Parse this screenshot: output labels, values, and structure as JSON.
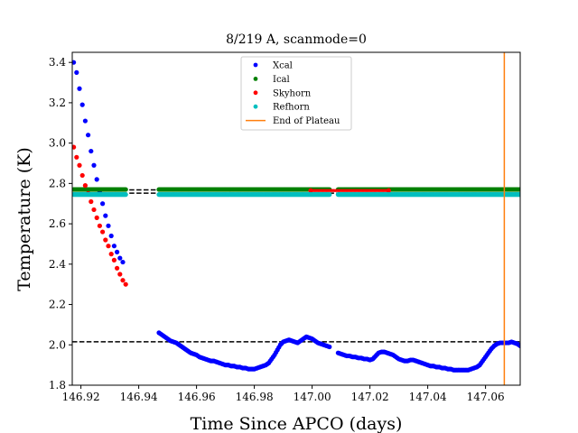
{
  "chart_data": {
    "type": "scatter",
    "title": "8/219 A, scanmode=0",
    "xlabel": "Time Since APCO (days)",
    "ylabel": "Temperature (K)",
    "xlim": [
      146.917,
      147.072
    ],
    "ylim": [
      1.8,
      3.45
    ],
    "xticks": [
      "146.92",
      "146.94",
      "146.96",
      "146.98",
      "147.00",
      "147.02",
      "147.04",
      "147.06"
    ],
    "yticks": [
      "1.8",
      "2.0",
      "2.2",
      "2.4",
      "2.6",
      "2.8",
      "3.0",
      "3.2",
      "3.4"
    ],
    "grid": false,
    "legend_position": "top-center",
    "series": [
      {
        "name": "Xcal",
        "color": "#0000ff",
        "segments": [
          {
            "points": [
              [
                146.9175,
                3.4
              ],
              [
                146.9185,
                3.35
              ],
              [
                146.9195,
                3.27
              ],
              [
                146.9205,
                3.19
              ],
              [
                146.9215,
                3.11
              ],
              [
                146.9225,
                3.04
              ],
              [
                146.9235,
                2.96
              ],
              [
                146.9245,
                2.89
              ],
              [
                146.9255,
                2.82
              ],
              [
                146.9265,
                2.76
              ],
              [
                146.9275,
                2.7
              ],
              [
                146.9285,
                2.64
              ],
              [
                146.9295,
                2.59
              ],
              [
                146.9305,
                2.54
              ],
              [
                146.9315,
                2.49
              ],
              [
                146.9325,
                2.46
              ],
              [
                146.9335,
                2.43
              ],
              [
                146.9345,
                2.41
              ]
            ]
          },
          {
            "points": [
              [
                146.947,
                2.06
              ],
              [
                146.948,
                2.05
              ],
              [
                146.949,
                2.04
              ],
              [
                146.95,
                2.03
              ],
              [
                146.951,
                2.02
              ],
              [
                146.952,
                2.015
              ],
              [
                146.953,
                2.01
              ],
              [
                146.954,
                2.0
              ],
              [
                146.955,
                1.99
              ],
              [
                146.956,
                1.98
              ],
              [
                146.957,
                1.97
              ],
              [
                146.958,
                1.96
              ],
              [
                146.959,
                1.955
              ],
              [
                146.96,
                1.95
              ],
              [
                146.961,
                1.94
              ],
              [
                146.962,
                1.935
              ],
              [
                146.963,
                1.93
              ],
              [
                146.964,
                1.925
              ],
              [
                146.965,
                1.92
              ],
              [
                146.966,
                1.92
              ],
              [
                146.967,
                1.915
              ],
              [
                146.968,
                1.91
              ],
              [
                146.969,
                1.905
              ],
              [
                146.97,
                1.9
              ],
              [
                146.971,
                1.9
              ],
              [
                146.972,
                1.895
              ],
              [
                146.973,
                1.895
              ],
              [
                146.974,
                1.89
              ],
              [
                146.975,
                1.89
              ],
              [
                146.976,
                1.885
              ],
              [
                146.977,
                1.885
              ],
              [
                146.978,
                1.88
              ],
              [
                146.979,
                1.88
              ],
              [
                146.98,
                1.88
              ],
              [
                146.981,
                1.885
              ],
              [
                146.982,
                1.89
              ],
              [
                146.983,
                1.895
              ],
              [
                146.984,
                1.9
              ],
              [
                146.985,
                1.91
              ],
              [
                146.986,
                1.93
              ],
              [
                146.987,
                1.95
              ],
              [
                146.988,
                1.975
              ],
              [
                146.989,
                2.0
              ],
              [
                146.99,
                2.015
              ],
              [
                146.991,
                2.02
              ],
              [
                146.992,
                2.025
              ],
              [
                146.993,
                2.02
              ],
              [
                146.994,
                2.015
              ],
              [
                146.995,
                2.01
              ],
              [
                146.996,
                2.02
              ],
              [
                146.997,
                2.03
              ],
              [
                146.998,
                2.04
              ],
              [
                146.999,
                2.035
              ],
              [
                147.0,
                2.03
              ],
              [
                147.001,
                2.02
              ],
              [
                147.002,
                2.01
              ],
              [
                147.003,
                2.005
              ],
              [
                147.004,
                2.0
              ],
              [
                147.005,
                1.995
              ],
              [
                147.006,
                1.99
              ]
            ]
          },
          {
            "points": [
              [
                147.009,
                1.96
              ],
              [
                147.01,
                1.955
              ],
              [
                147.011,
                1.95
              ],
              [
                147.012,
                1.945
              ],
              [
                147.013,
                1.945
              ],
              [
                147.014,
                1.94
              ],
              [
                147.015,
                1.94
              ],
              [
                147.016,
                1.935
              ],
              [
                147.017,
                1.935
              ],
              [
                147.018,
                1.93
              ],
              [
                147.019,
                1.93
              ],
              [
                147.02,
                1.925
              ],
              [
                147.021,
                1.93
              ],
              [
                147.022,
                1.945
              ],
              [
                147.023,
                1.96
              ],
              [
                147.024,
                1.965
              ],
              [
                147.025,
                1.965
              ],
              [
                147.026,
                1.96
              ],
              [
                147.027,
                1.955
              ],
              [
                147.028,
                1.95
              ],
              [
                147.029,
                1.94
              ],
              [
                147.03,
                1.93
              ],
              [
                147.031,
                1.925
              ],
              [
                147.032,
                1.92
              ],
              [
                147.033,
                1.92
              ],
              [
                147.034,
                1.925
              ],
              [
                147.035,
                1.925
              ],
              [
                147.036,
                1.92
              ],
              [
                147.037,
                1.915
              ],
              [
                147.038,
                1.91
              ],
              [
                147.039,
                1.905
              ],
              [
                147.04,
                1.9
              ],
              [
                147.041,
                1.895
              ],
              [
                147.042,
                1.895
              ],
              [
                147.043,
                1.89
              ],
              [
                147.044,
                1.89
              ],
              [
                147.045,
                1.885
              ],
              [
                147.046,
                1.885
              ],
              [
                147.047,
                1.88
              ],
              [
                147.048,
                1.88
              ],
              [
                147.049,
                1.875
              ],
              [
                147.05,
                1.875
              ],
              [
                147.051,
                1.875
              ],
              [
                147.052,
                1.875
              ],
              [
                147.053,
                1.875
              ],
              [
                147.054,
                1.875
              ],
              [
                147.055,
                1.88
              ],
              [
                147.056,
                1.885
              ],
              [
                147.057,
                1.89
              ],
              [
                147.058,
                1.9
              ],
              [
                147.059,
                1.92
              ],
              [
                147.06,
                1.94
              ],
              [
                147.061,
                1.96
              ],
              [
                147.062,
                1.98
              ],
              [
                147.063,
                1.995
              ],
              [
                147.064,
                2.005
              ],
              [
                147.065,
                2.01
              ],
              [
                147.066,
                2.01
              ],
              [
                147.067,
                2.01
              ],
              [
                147.068,
                2.01
              ],
              [
                147.069,
                2.015
              ],
              [
                147.07,
                2.01
              ],
              [
                147.071,
                2.005
              ],
              [
                147.072,
                1.995
              ]
            ]
          }
        ]
      },
      {
        "name": "Ical",
        "color": "#008000",
        "segments": [
          {
            "flat": [
              146.9175,
              146.9355,
              2.77
            ]
          },
          {
            "flat": [
              146.947,
              147.006,
              2.77
            ]
          },
          {
            "flat": [
              147.009,
              147.072,
              2.77
            ]
          }
        ]
      },
      {
        "name": "Skyhorn",
        "color": "#ff0000",
        "segments": [
          {
            "points": [
              [
                146.9175,
                2.98
              ],
              [
                146.9185,
                2.93
              ],
              [
                146.9195,
                2.89
              ],
              [
                146.9205,
                2.84
              ],
              [
                146.9215,
                2.79
              ],
              [
                146.9225,
                2.75
              ],
              [
                146.9235,
                2.71
              ],
              [
                146.9245,
                2.67
              ],
              [
                146.9255,
                2.63
              ],
              [
                146.9265,
                2.59
              ],
              [
                146.9275,
                2.56
              ],
              [
                146.9285,
                2.52
              ],
              [
                146.9295,
                2.49
              ],
              [
                146.9305,
                2.45
              ],
              [
                146.9315,
                2.42
              ],
              [
                146.9325,
                2.38
              ],
              [
                146.9335,
                2.35
              ],
              [
                146.9345,
                2.32
              ],
              [
                146.9355,
                2.3
              ]
            ]
          },
          {
            "points": [
              [
                146.9995,
                2.765
              ],
              [
                147.0265,
                2.765
              ]
            ]
          }
        ]
      },
      {
        "name": "Refhorn",
        "color": "#00bfbf",
        "segments": [
          {
            "flat": [
              146.9175,
              146.9355,
              2.745
            ]
          },
          {
            "flat": [
              146.947,
              147.006,
              2.745
            ]
          },
          {
            "flat": [
              147.009,
              147.072,
              2.745
            ]
          }
        ]
      },
      {
        "name": "End of Plateau",
        "color": "#ff7f0e",
        "vline": 147.0665
      }
    ],
    "hlines": [
      2.015,
      2.768,
      2.752
    ]
  }
}
